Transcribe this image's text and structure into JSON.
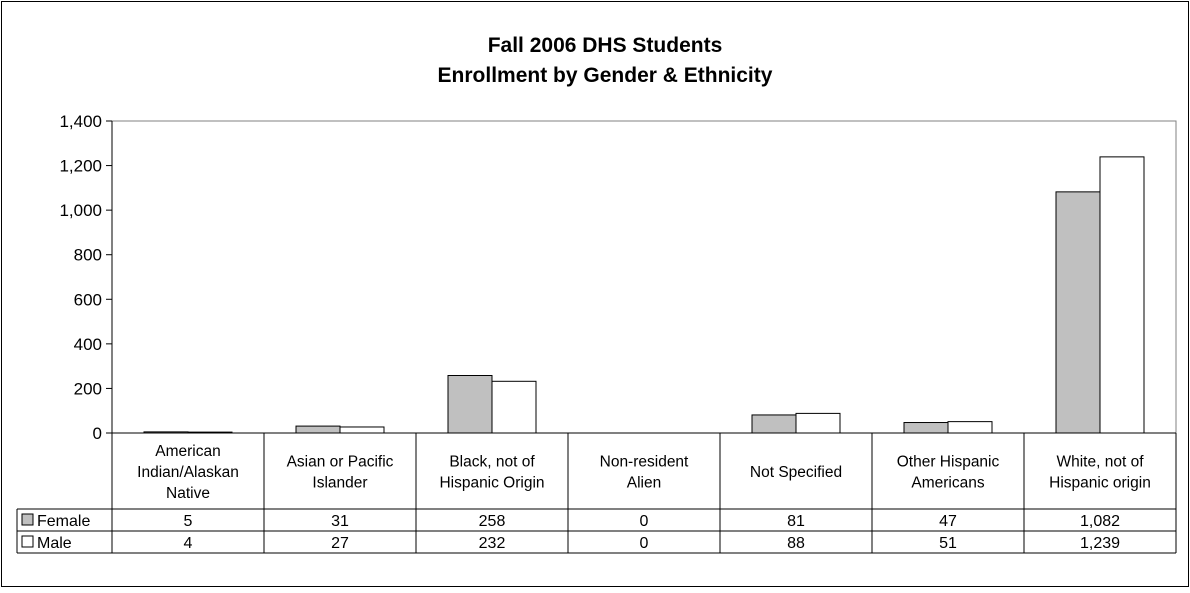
{
  "chart_data": {
    "type": "bar",
    "title": "Fall 2006 DHS Students",
    "subtitle": "Enrollment by Gender & Ethnicity",
    "categories": [
      [
        "American",
        "Indian/Alaskan",
        "Native"
      ],
      [
        "Asian or Pacific",
        "Islander"
      ],
      [
        "Black, not of",
        "Hispanic Origin"
      ],
      [
        "Non-resident",
        "Alien"
      ],
      [
        "Not Specified"
      ],
      [
        "Other Hispanic",
        "Americans"
      ],
      [
        "White, not of",
        "Hispanic origin"
      ]
    ],
    "series": [
      {
        "name": "Female",
        "color": "#c0c0c0",
        "values": [
          5,
          31,
          258,
          0,
          81,
          47,
          1082
        ],
        "labels": [
          "5",
          "31",
          "258",
          "0",
          "81",
          "47",
          "1,082"
        ]
      },
      {
        "name": "Male",
        "color": "#ffffff",
        "values": [
          4,
          27,
          232,
          0,
          88,
          51,
          1239
        ],
        "labels": [
          "4",
          "27",
          "232",
          "0",
          "88",
          "51",
          "1,239"
        ]
      }
    ],
    "ylim": [
      0,
      1400
    ],
    "yticks": [
      0,
      200,
      400,
      600,
      800,
      1000,
      1200,
      1400
    ],
    "ytick_labels": [
      "0",
      "200",
      "400",
      "600",
      "800",
      "1,000",
      "1,200",
      "1,400"
    ],
    "grid": false,
    "legend": "data-table",
    "colors": {
      "plot_background": "#ffffff",
      "frame": "#000000",
      "plot_border": "#808080"
    }
  }
}
